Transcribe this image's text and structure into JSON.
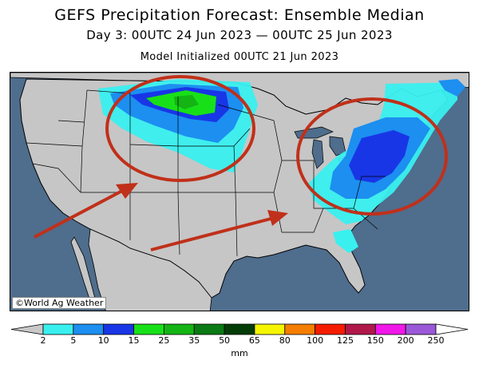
{
  "title": "GEFS Precipitation Forecast: Ensemble Median",
  "subtitle": "Day 3: 00UTC 24 Jun 2023 — 00UTC 25 Jun 2023",
  "initialized": "Model Initialized 00UTC 21 Jun 2023",
  "credit": "©World Ag Weather",
  "colors": {
    "ocean": "#4f6d8c",
    "land": "#c6c6c6",
    "border": "#000000",
    "annotation": "#c0301a"
  },
  "legend": {
    "unit": "mm",
    "ticks": [
      "2",
      "5",
      "10",
      "15",
      "25",
      "35",
      "50",
      "65",
      "80",
      "100",
      "125",
      "150",
      "200",
      "250"
    ],
    "colors": [
      "#c8c8c8",
      "#39f0ef",
      "#1c8ff0",
      "#1836e6",
      "#18e018",
      "#14b414",
      "#0a7a14",
      "#043c08",
      "#f5f500",
      "#f57e00",
      "#f51c00",
      "#b0184a",
      "#f018e8",
      "#9a58d8",
      "#ffffff"
    ]
  },
  "annotations": [
    {
      "type": "circle",
      "label": "northern-plains-circle"
    },
    {
      "type": "circle",
      "label": "eastern-us-circle"
    },
    {
      "type": "arrow",
      "label": "arrow-to-plains"
    },
    {
      "type": "arrow",
      "label": "arrow-to-east"
    }
  ]
}
